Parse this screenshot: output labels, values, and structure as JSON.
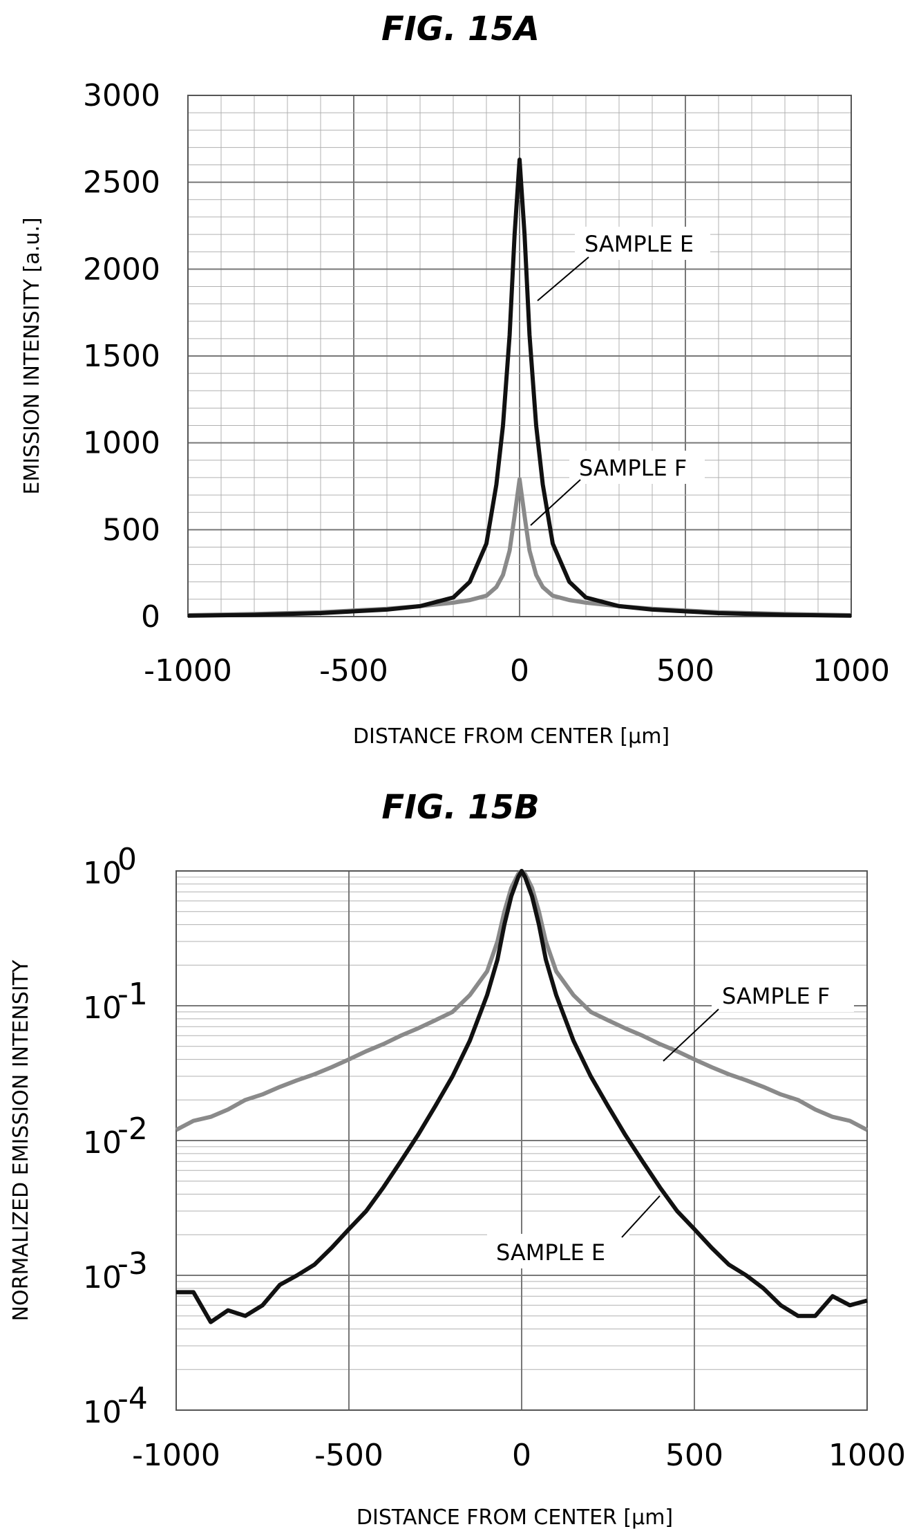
{
  "chart_data": [
    {
      "type": "line",
      "title": "FIG. 15A",
      "xlabel": "DISTANCE FROM CENTER [μm]",
      "ylabel": "EMISSION INTENSITY [a.u.]",
      "xlim": [
        -1000,
        1000
      ],
      "ylim": [
        0,
        3000
      ],
      "grid": true,
      "x_ticks": [
        "-1000",
        "-500",
        "0",
        "500",
        "1000"
      ],
      "y_ticks": [
        "0",
        "500",
        "1000",
        "1500",
        "2000",
        "2500",
        "3000"
      ],
      "x": [
        -1000,
        -800,
        -600,
        -400,
        -300,
        -200,
        -150,
        -100,
        -70,
        -50,
        -30,
        -15,
        0,
        15,
        30,
        50,
        70,
        100,
        150,
        200,
        300,
        400,
        600,
        800,
        1000
      ],
      "series": [
        {
          "name": "SAMPLE E",
          "color": "#111111",
          "values": [
            5,
            10,
            20,
            40,
            60,
            110,
            200,
            420,
            760,
            1100,
            1620,
            2200,
            2630,
            2200,
            1620,
            1100,
            760,
            420,
            200,
            110,
            60,
            40,
            20,
            10,
            5
          ]
        },
        {
          "name": "SAMPLE F",
          "color": "#8a8a8a",
          "values": [
            8,
            15,
            25,
            45,
            60,
            80,
            95,
            120,
            170,
            240,
            380,
            580,
            790,
            580,
            380,
            240,
            170,
            120,
            95,
            80,
            60,
            45,
            25,
            15,
            8
          ]
        }
      ],
      "annotations": [
        "SAMPLE E",
        "SAMPLE F"
      ]
    },
    {
      "type": "line",
      "title": "FIG. 15B",
      "xlabel": "DISTANCE FROM CENTER [μm]",
      "ylabel": "NORMALIZED EMISSION INTENSITY",
      "xlim": [
        -1000,
        1000
      ],
      "ylim": [
        0.0001,
        1
      ],
      "yscale": "log",
      "grid": true,
      "x_ticks": [
        "-1000",
        "-500",
        "0",
        "500",
        "1000"
      ],
      "y_ticks": [
        {
          "base": "10",
          "exp": "0"
        },
        {
          "base": "10",
          "exp": "-1"
        },
        {
          "base": "10",
          "exp": "-2"
        },
        {
          "base": "10",
          "exp": "-3"
        },
        {
          "base": "10",
          "exp": "-4"
        }
      ],
      "x": [
        -1000,
        -950,
        -900,
        -850,
        -800,
        -750,
        -700,
        -650,
        -600,
        -550,
        -500,
        -450,
        -400,
        -350,
        -300,
        -250,
        -200,
        -150,
        -100,
        -70,
        -50,
        -30,
        -10,
        0,
        10,
        30,
        50,
        70,
        100,
        150,
        200,
        250,
        300,
        350,
        400,
        450,
        500,
        550,
        600,
        650,
        700,
        750,
        800,
        850,
        900,
        950,
        1000
      ],
      "series": [
        {
          "name": "SAMPLE E",
          "color": "#111111",
          "values": [
            0.00075,
            0.00075,
            0.00045,
            0.00055,
            0.0005,
            0.0006,
            0.00085,
            0.001,
            0.0012,
            0.0016,
            0.0022,
            0.003,
            0.0045,
            0.007,
            0.011,
            0.018,
            0.03,
            0.055,
            0.12,
            0.22,
            0.4,
            0.65,
            0.9,
            1.0,
            0.9,
            0.65,
            0.4,
            0.22,
            0.12,
            0.055,
            0.03,
            0.018,
            0.011,
            0.007,
            0.0045,
            0.003,
            0.0022,
            0.0016,
            0.0012,
            0.001,
            0.0008,
            0.0006,
            0.0005,
            0.0005,
            0.0007,
            0.0006,
            0.00065
          ]
        },
        {
          "name": "SAMPLE F",
          "color": "#8a8a8a",
          "values": [
            0.012,
            0.014,
            0.015,
            0.017,
            0.02,
            0.022,
            0.025,
            0.028,
            0.031,
            0.035,
            0.04,
            0.046,
            0.052,
            0.06,
            0.068,
            0.078,
            0.09,
            0.12,
            0.18,
            0.3,
            0.5,
            0.75,
            0.95,
            1.0,
            0.95,
            0.75,
            0.5,
            0.3,
            0.18,
            0.12,
            0.09,
            0.078,
            0.068,
            0.06,
            0.052,
            0.046,
            0.04,
            0.035,
            0.031,
            0.028,
            0.025,
            0.022,
            0.02,
            0.017,
            0.015,
            0.014,
            0.012
          ]
        }
      ],
      "annotations": [
        "SAMPLE F",
        "SAMPLE E"
      ]
    }
  ]
}
